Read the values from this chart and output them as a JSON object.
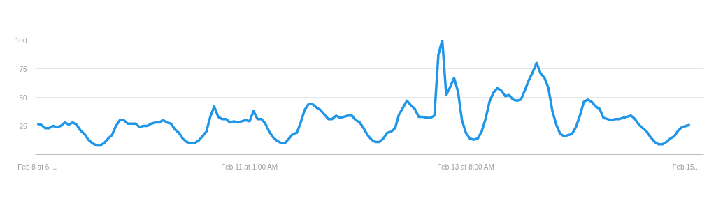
{
  "chart_data": {
    "type": "line",
    "categories": [
      "Feb 8 at 6:...",
      null,
      null,
      null,
      null,
      null,
      null,
      null,
      null,
      null,
      null,
      null,
      null,
      null,
      null,
      null,
      null,
      null,
      null,
      null,
      null,
      null,
      null,
      null,
      null,
      null,
      null,
      null,
      null,
      null,
      null,
      null,
      null,
      null,
      null,
      null,
      null,
      null,
      null,
      null,
      null,
      null,
      null,
      null,
      null,
      null,
      null,
      null,
      null,
      null,
      null,
      null,
      null,
      null,
      "Feb 11 at 1:00 AM",
      null,
      null,
      null,
      null,
      null,
      null,
      null,
      null,
      null,
      null,
      null,
      null,
      null,
      null,
      null,
      null,
      null,
      null,
      null,
      null,
      null,
      null,
      null,
      null,
      null,
      null,
      null,
      null,
      null,
      null,
      null,
      null,
      null,
      null,
      null,
      null,
      null,
      null,
      null,
      null,
      null,
      null,
      null,
      null,
      null,
      null,
      null,
      null,
      null,
      null,
      null,
      null,
      null,
      null,
      "Feb 13 at 8:00 AM",
      null,
      null,
      null,
      null,
      null,
      null,
      null,
      null,
      null,
      null,
      null,
      null,
      null,
      null,
      null,
      null,
      null,
      null,
      null,
      null,
      null,
      null,
      null,
      null,
      null,
      null,
      null,
      null,
      null,
      null,
      null,
      null,
      null,
      null,
      null,
      null,
      null,
      null,
      null,
      null,
      null,
      null,
      null,
      null,
      null,
      null,
      null,
      null,
      null,
      null,
      null,
      null,
      null,
      null,
      null,
      "Feb 15...",
      null
    ],
    "series": [
      {
        "color": "#2196e8",
        "values": [
          27,
          26,
          23,
          23,
          25,
          24,
          25,
          28,
          26,
          28,
          26,
          21,
          18,
          13,
          10,
          8,
          8,
          10,
          14,
          17,
          25,
          30,
          30,
          27,
          27,
          27,
          24,
          25,
          25,
          27,
          28,
          28,
          30,
          28,
          27,
          22,
          19,
          14,
          11,
          10,
          10,
          12,
          16,
          20,
          33,
          42,
          33,
          31,
          31,
          28,
          29,
          28,
          29,
          30,
          29,
          38,
          31,
          31,
          27,
          20,
          15,
          12,
          10,
          10,
          14,
          18,
          19,
          28,
          39,
          44,
          44,
          41,
          39,
          35,
          31,
          31,
          34,
          32,
          33,
          34,
          34,
          30,
          28,
          23,
          17,
          13,
          11,
          11,
          14,
          19,
          20,
          23,
          35,
          41,
          47,
          43,
          40,
          33,
          33,
          32,
          32,
          34,
          87,
          100,
          52,
          59,
          67,
          55,
          30,
          19,
          14,
          13,
          14,
          20,
          31,
          46,
          54,
          58,
          56,
          51,
          52,
          48,
          47,
          48,
          56,
          65,
          72,
          80,
          71,
          67,
          58,
          38,
          26,
          18,
          16,
          17,
          18,
          24,
          34,
          46,
          48,
          46,
          42,
          40,
          32,
          31,
          30,
          31,
          31,
          32,
          33,
          34,
          31,
          26,
          23,
          20,
          15,
          11,
          9,
          9,
          11,
          14,
          16,
          21,
          24,
          25,
          26
        ]
      }
    ],
    "ylim": [
      0,
      100
    ],
    "yticks": [
      {
        "value": 0,
        "label": null
      },
      25,
      50,
      75,
      100
    ],
    "grid": "y",
    "marker": "none",
    "line_style": "solid"
  }
}
